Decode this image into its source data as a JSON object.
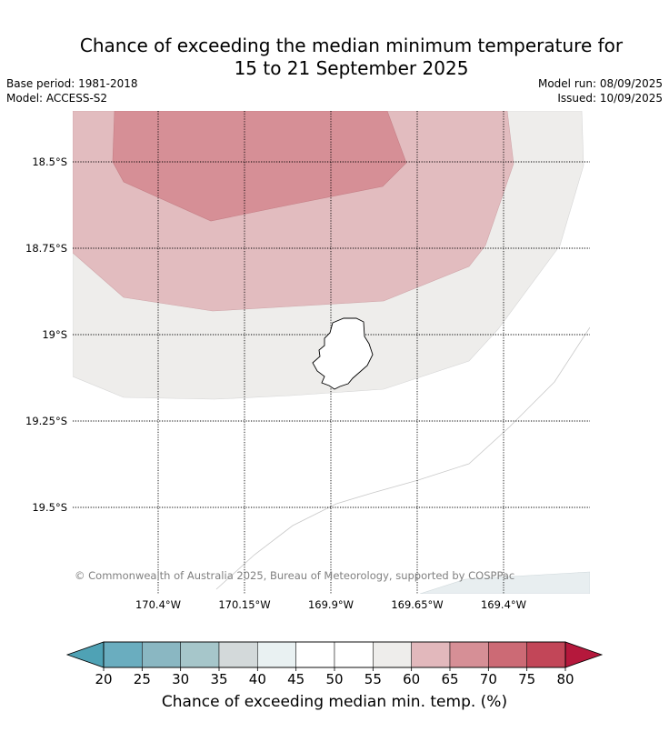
{
  "title": {
    "line1": "Chance of exceeding the median minimum temperature for",
    "line2": "15 to 21 September 2025"
  },
  "info": {
    "base_period": "Base period: 1981-2018",
    "model": "Model: ACCESS-S2",
    "model_run": "Model run: 08/09/2025",
    "issued": "Issued: 10/09/2025"
  },
  "map": {
    "lat_labels": [
      "18.5°S",
      "18.75°S",
      "19°S",
      "19.25°S",
      "19.5°S"
    ],
    "lon_labels": [
      "170.4°W",
      "170.15°W",
      "169.9°W",
      "169.65°W",
      "169.4°W"
    ],
    "copyright": "© Commonwealth of Australia 2025, Bureau of Meteorology, supported by COSPPac",
    "region_colors": {
      "55-60": "#eeedeb",
      "60-65": "#e2bcbf",
      "65-70": "#d68f96",
      "40-45-sea": "#e8eef0"
    }
  },
  "colorbar": {
    "ticks": [
      "20",
      "25",
      "30",
      "35",
      "40",
      "45",
      "50",
      "55",
      "60",
      "65",
      "70",
      "75",
      "80"
    ],
    "colors": [
      "#6aadbf",
      "#8ab7c2",
      "#a6c6ca",
      "#d3d9da",
      "#e9f1f2",
      "#ffffff",
      "#ffffff",
      "#eeedeb",
      "#e2b8bc",
      "#d68f96",
      "#cc6a75",
      "#c24658"
    ],
    "under_color": "#4fa2b5",
    "over_color": "#b5183c",
    "label": "Chance of exceeding median min. temp. (%)"
  }
}
